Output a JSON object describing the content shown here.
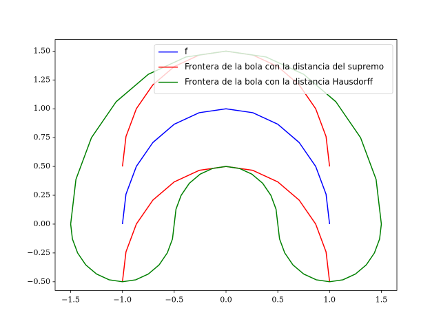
{
  "chart_data": {
    "type": "line",
    "legend": "upper right",
    "grid": false,
    "xlim": [
      -1.65,
      1.65
    ],
    "ylim": [
      -0.575,
      1.6
    ],
    "xticks": [
      {
        "value": -1.5,
        "label": "−1.5"
      },
      {
        "value": -1,
        "label": "−1.0"
      },
      {
        "value": -0.5,
        "label": "−0.5"
      },
      {
        "value": 0,
        "label": "0.0"
      },
      {
        "value": 0.5,
        "label": "0.5"
      },
      {
        "value": 1,
        "label": "1.0"
      },
      {
        "value": 1.5,
        "label": "1.5"
      }
    ],
    "yticks": [
      {
        "value": -0.5,
        "label": "−0.50"
      },
      {
        "value": -0.25,
        "label": "−0.25"
      },
      {
        "value": 0,
        "label": "0.00"
      },
      {
        "value": 0.25,
        "label": "0.25"
      },
      {
        "value": 0.5,
        "label": "0.50"
      },
      {
        "value": 0.75,
        "label": "0.75"
      },
      {
        "value": 1,
        "label": "1.00"
      },
      {
        "value": 1.25,
        "label": "1.25"
      },
      {
        "value": 1.5,
        "label": "1.50"
      }
    ],
    "series": [
      {
        "name": "f",
        "color": "#0000ff",
        "x": [
          -1,
          -0.966,
          -0.866,
          -0.707,
          -0.5,
          -0.259,
          0,
          0.259,
          0.5,
          0.707,
          0.866,
          0.966,
          1
        ],
        "values": [
          0,
          0.259,
          0.5,
          0.707,
          0.866,
          0.966,
          1,
          0.966,
          0.866,
          0.707,
          0.5,
          0.259,
          0
        ]
      },
      {
        "name": "Frontera de la bola con la distancia del supremo",
        "color": "#ff0000",
        "x": [
          -1,
          -0.966,
          -0.866,
          -0.707,
          -0.5,
          -0.259,
          0,
          0.259,
          0.5,
          0.707,
          0.866,
          0.966,
          1,
          null,
          -1,
          -0.966,
          -0.866,
          -0.707,
          -0.5,
          -0.259,
          0,
          0.259,
          0.5,
          0.707,
          0.866,
          0.966,
          1
        ],
        "values": [
          0.5,
          0.759,
          1,
          1.207,
          1.366,
          1.466,
          1.5,
          1.466,
          1.366,
          1.207,
          1,
          0.759,
          0.5,
          null,
          -0.5,
          -0.241,
          0,
          0.207,
          0.366,
          0.466,
          0.5,
          0.466,
          0.366,
          0.207,
          0,
          -0.241,
          -0.5
        ]
      },
      {
        "name": "Frontera de la bola con la distancia Hausdorff",
        "color": "#008000",
        "x": [
          -1.5,
          -1.449,
          -1.299,
          -1.061,
          -0.75,
          -0.388,
          0,
          0.388,
          0.75,
          1.061,
          1.299,
          1.449,
          1.5,
          1.483,
          1.433,
          1.354,
          1.25,
          1.129,
          1,
          0.871,
          0.75,
          0.646,
          0.567,
          0.517,
          0.5,
          0.483,
          0.433,
          0.354,
          0.25,
          0.129,
          0,
          -0.129,
          -0.25,
          -0.354,
          -0.433,
          -0.483,
          -0.5,
          -0.517,
          -0.567,
          -0.646,
          -0.75,
          -0.871,
          -1,
          -1.129,
          -1.25,
          -1.354,
          -1.433,
          -1.483,
          -1.5
        ],
        "values": [
          0,
          0.388,
          0.75,
          1.061,
          1.299,
          1.449,
          1.5,
          1.449,
          1.299,
          1.061,
          0.75,
          0.388,
          0,
          -0.129,
          -0.25,
          -0.354,
          -0.433,
          -0.483,
          -0.5,
          -0.483,
          -0.433,
          -0.354,
          -0.25,
          -0.129,
          0,
          0.129,
          0.25,
          0.354,
          0.433,
          0.483,
          0.5,
          0.483,
          0.433,
          0.354,
          0.25,
          0.129,
          0,
          -0.129,
          -0.25,
          -0.354,
          -0.433,
          -0.483,
          -0.5,
          -0.483,
          -0.433,
          -0.354,
          -0.25,
          -0.129,
          0
        ]
      }
    ]
  }
}
